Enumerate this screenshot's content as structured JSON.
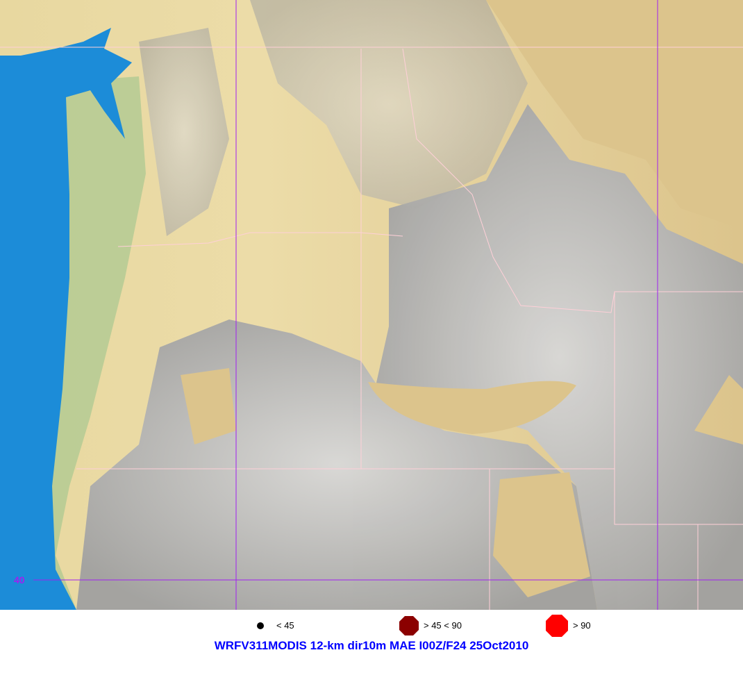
{
  "map": {
    "gridline_color": "#a020f0",
    "latitude_label": "40",
    "ocean_color": "#1c8cd8",
    "lowland_color": "#dcc48c",
    "highland_color": "#a8a8a8"
  },
  "legend": [
    {
      "label": "< 45",
      "symbol": "small-dot-icon",
      "color": "#000000"
    },
    {
      "label": "> 45 < 90",
      "symbol": "octagon-icon",
      "color": "#8b0000"
    },
    {
      "label": "> 90",
      "symbol": "octagon-icon",
      "color": "#ff0000"
    }
  ],
  "title": "WRFV311MODIS 12-km dir10m MAE I00Z/F24 25Oct2010"
}
